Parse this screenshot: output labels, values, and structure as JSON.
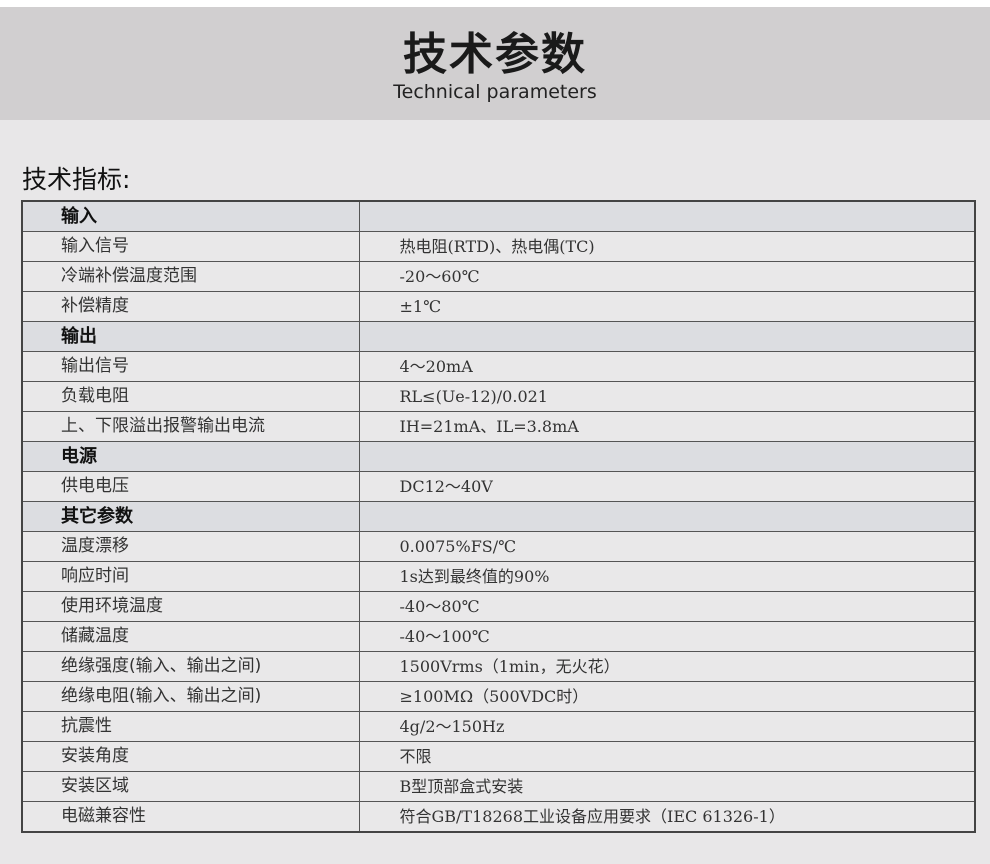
{
  "header": {
    "title": "技术参数",
    "subtitle": "Technical parameters"
  },
  "section_label": "技术指标:",
  "rows": [
    {
      "type": "section",
      "key": "输入",
      "value": ""
    },
    {
      "type": "row",
      "key": "输入信号",
      "value": "热电阻(RTD)、热电偶(TC)"
    },
    {
      "type": "row",
      "key": "冷端补偿温度范围",
      "value": "-20～60℃"
    },
    {
      "type": "row",
      "key": "补偿精度",
      "value": "±1℃"
    },
    {
      "type": "section",
      "key": "输出",
      "value": ""
    },
    {
      "type": "row",
      "key": "输出信号",
      "value": "4～20mA"
    },
    {
      "type": "row",
      "key": "负载电阻",
      "value": "RL≤(Ue-12)/0.021"
    },
    {
      "type": "row",
      "key": "上、下限溢出报警输出电流",
      "value": "IH=21mA、IL=3.8mA"
    },
    {
      "type": "section",
      "key": "电源",
      "value": ""
    },
    {
      "type": "row",
      "key": "供电电压",
      "value": "DC12～40V"
    },
    {
      "type": "section",
      "key": "其它参数",
      "value": ""
    },
    {
      "type": "row",
      "key": "温度漂移",
      "value": "0.0075%FS/℃"
    },
    {
      "type": "row",
      "key": "响应时间",
      "value": "1s达到最终值的90%"
    },
    {
      "type": "row",
      "key": "使用环境温度",
      "value": "-40～80℃"
    },
    {
      "type": "row",
      "key": "储藏温度",
      "value": "-40～100℃"
    },
    {
      "type": "row",
      "key": "绝缘强度(输入、输出之间)",
      "value": "1500Vrms（1min，无火花）"
    },
    {
      "type": "row",
      "key": "绝缘电阻(输入、输出之间)",
      "value": "≥100MΩ（500VDC时）"
    },
    {
      "type": "row",
      "key": "抗震性",
      "value": "4g/2～150Hz"
    },
    {
      "type": "row",
      "key": "安装角度",
      "value": "不限"
    },
    {
      "type": "row",
      "key": "安装区域",
      "value": "B型顶部盒式安装"
    },
    {
      "type": "row",
      "key": "电磁兼容性",
      "value": "符合GB/T18268工业设备应用要求（IEC 61326-1）"
    }
  ]
}
